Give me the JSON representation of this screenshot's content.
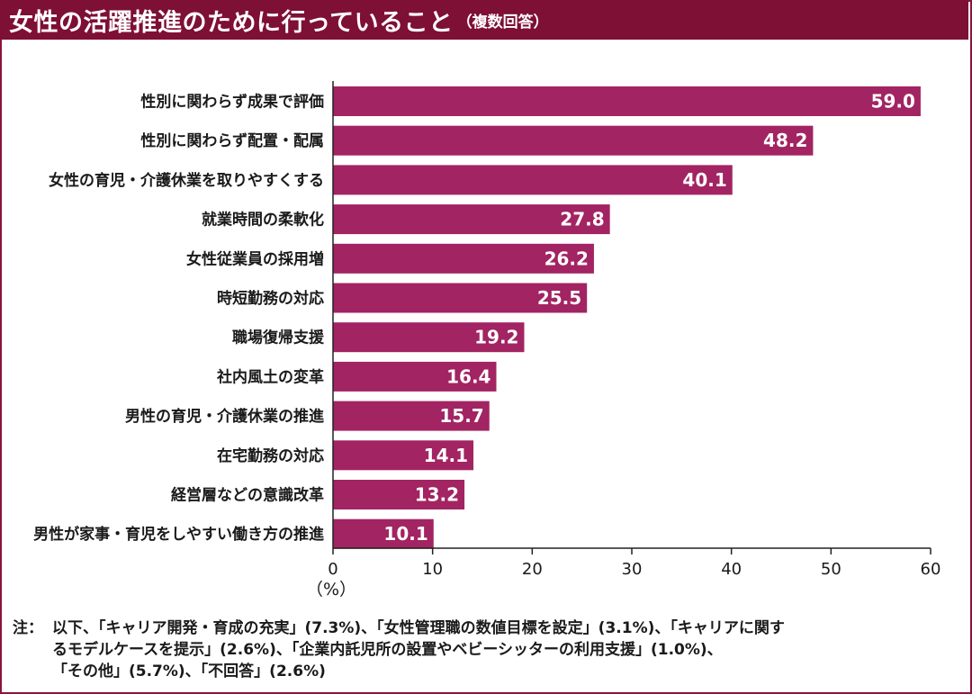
{
  "title": "女性の活躍推進のために行っていること",
  "subtitle": "（複数回答）",
  "unit": "（%）",
  "colors": {
    "bar": "#a22462",
    "title_bg": "#7e0f35",
    "frame": "#8a1538"
  },
  "chart_data": {
    "type": "bar",
    "orientation": "horizontal",
    "categories": [
      "性別に関わらず成果で評価",
      "性別に関わらず配置・配属",
      "女性の育児・介護休業を取りやすくする",
      "就業時間の柔軟化",
      "女性従業員の採用増",
      "時短勤務の対応",
      "職場復帰支援",
      "社内風土の変革",
      "男性の育児・介護休業の推進",
      "在宅勤務の対応",
      "経営層などの意識改革",
      "男性が家事・育児をしやすい働き方の推進"
    ],
    "values": [
      59.0,
      48.2,
      40.1,
      27.8,
      26.2,
      25.5,
      19.2,
      16.4,
      15.7,
      14.1,
      13.2,
      10.1
    ],
    "value_labels": [
      "59.0",
      "48.2",
      "40.1",
      "27.8",
      "26.2",
      "25.5",
      "19.2",
      "16.4",
      "15.7",
      "14.1",
      "13.2",
      "10.1"
    ],
    "xlim": [
      0,
      60
    ],
    "xticks": [
      0,
      10,
      20,
      30,
      40,
      50,
      60
    ],
    "grid": false,
    "legend": "none"
  },
  "note": {
    "prefix": "注：",
    "lines": [
      "以下、「キャリア開発・育成の充実」(7.3%)、「女性管理職の数値目標を設定」(3.1%)、「キャリアに関す",
      "るモデルケースを提示」(2.6%)、「企業内託児所の設置やベビーシッターの利用支援」(1.0%)、",
      "「その他」(5.7%)、「不回答」(2.6%)"
    ]
  }
}
